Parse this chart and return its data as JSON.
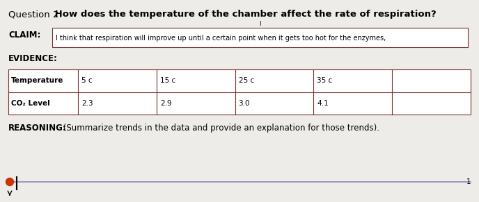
{
  "title_prefix": "Question 2: ",
  "title_suffix": " How does the temperature of the chamber affect the rate of respiration?",
  "claim_label": "CLAIM:",
  "claim_text": "I think that respiration will improve up until a certain point when it gets too hot for the enzymes,",
  "evidence_label": "EVIDENCE:",
  "table_col0_header": "Temperature",
  "table_col0_row2": "CO₂ Level",
  "table_temp_vals": [
    "5 c",
    "15 c",
    "25 c",
    "35 c",
    ""
  ],
  "table_co2_vals": [
    "2.3",
    "2.9",
    "3.0",
    "4.1",
    ""
  ],
  "reasoning_label": "REASONING:",
  "reasoning_text": " (Summarize trends in the data and provide an explanation for those trends).",
  "page_number": "1",
  "bg_color": "#eeece8",
  "table_border_color": "#7a3030",
  "claim_box_border": "#7a3030",
  "title_fontsize": 9.5,
  "label_fontsize": 8.5,
  "table_fontsize": 7.5,
  "reasoning_fontsize": 8.5,
  "small_fontsize": 7
}
